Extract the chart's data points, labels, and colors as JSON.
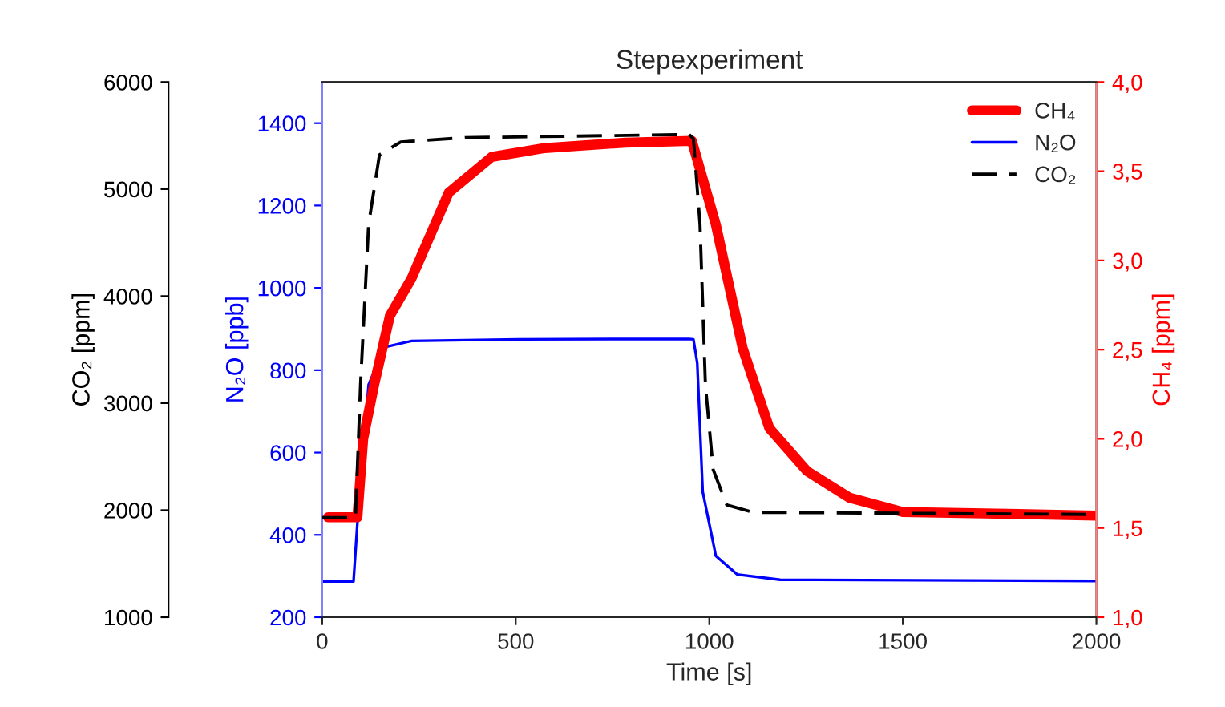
{
  "chart_data": {
    "type": "line",
    "title": "Stepexperiment",
    "xlabel": "Time [s]",
    "ylabel": "N₂O [ppb]",
    "y2label": "CH₄ [ppm]",
    "y3label": "CO₂ [ppm]",
    "xlim": [
      0,
      2000
    ],
    "xticks": [
      0,
      500,
      1000,
      1500,
      2000
    ],
    "ylim": [
      200,
      1500
    ],
    "yticks": [
      200,
      400,
      600,
      800,
      1000,
      1200,
      1400
    ],
    "y2lim": [
      1.0,
      4.0
    ],
    "y2ticks": [
      {
        "value": 1.0,
        "label": "1,0"
      },
      {
        "value": 1.5,
        "label": "1,5"
      },
      {
        "value": 2.0,
        "label": "2,0"
      },
      {
        "value": 2.5,
        "label": "2,5"
      },
      {
        "value": 3.0,
        "label": "3,0"
      },
      {
        "value": 3.5,
        "label": "3,5"
      },
      {
        "value": 4.0,
        "label": "4,0"
      }
    ],
    "y3lim": [
      1000,
      6000
    ],
    "y3ticks": [
      1000,
      2000,
      3000,
      4000,
      5000,
      6000
    ],
    "grid": false,
    "legend": "top right",
    "series": [
      {
        "name": "CH₄",
        "color": "#ff0000",
        "axis": "y2",
        "line_style": "solid",
        "x": [
          15,
          91,
          106,
          134,
          175,
          231,
          327,
          438,
          575,
          783,
          955,
          1017,
          1086,
          1155,
          1252,
          1362,
          1500,
          2000
        ],
        "values": [
          1.56,
          1.56,
          2.0,
          2.3,
          2.69,
          2.9,
          3.38,
          3.58,
          3.63,
          3.66,
          3.67,
          3.2,
          2.51,
          2.06,
          1.82,
          1.67,
          1.59,
          1.57
        ]
      },
      {
        "name": "N₂O",
        "color": "#0000ff",
        "axis": "y",
        "line_style": "solid",
        "x": [
          0,
          81,
          92,
          120,
          161,
          231,
          507,
          948,
          959,
          969,
          983,
          1017,
          1072,
          1183,
          2000
        ],
        "values": [
          287,
          287,
          442,
          765,
          856,
          871,
          875,
          876,
          875,
          817,
          505,
          349,
          304,
          291,
          288
        ]
      },
      {
        "name": "CO₂",
        "color": "#000000",
        "axis": "y3",
        "line_style": "dashed",
        "x": [
          0,
          86,
          99,
          120,
          148,
          203,
          369,
          948,
          959,
          976,
          990,
          1010,
          1045,
          1114,
          2000
        ],
        "values": [
          1930,
          1930,
          3170,
          4670,
          5320,
          5440,
          5480,
          5510,
          5470,
          4670,
          3170,
          2380,
          2050,
          1980,
          1960
        ]
      }
    ]
  }
}
